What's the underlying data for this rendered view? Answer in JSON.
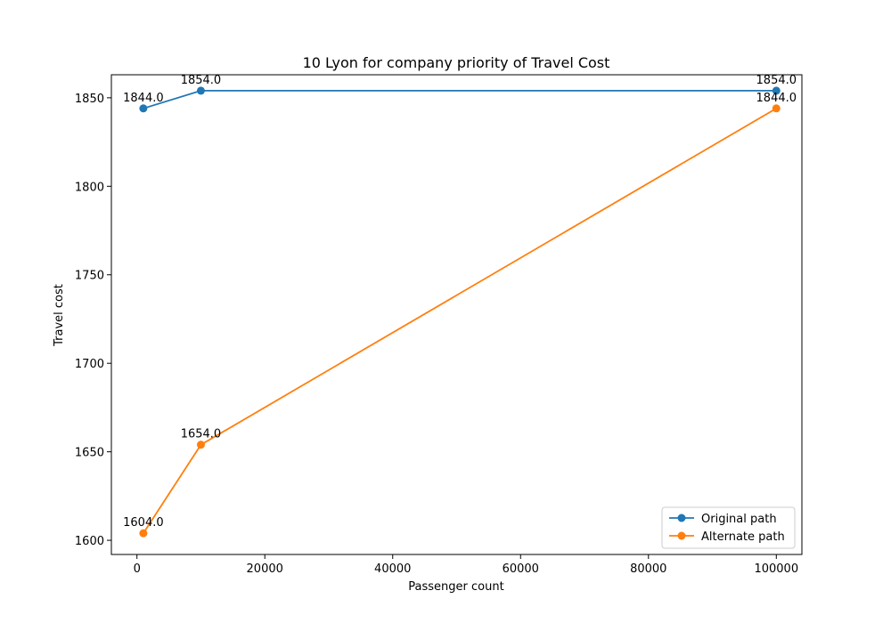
{
  "chart_data": {
    "type": "line",
    "title": "10 Lyon for company priority of Travel Cost",
    "xlabel": "Passenger count",
    "ylabel": "Travel cost",
    "xlim": [
      -4000,
      104000
    ],
    "ylim": [
      1592,
      1863
    ],
    "x_ticks": [
      0,
      20000,
      40000,
      60000,
      80000,
      100000
    ],
    "y_ticks": [
      1600,
      1650,
      1700,
      1750,
      1800,
      1850
    ],
    "grid": false,
    "legend_position": "lower-right",
    "series": [
      {
        "name": "Original path",
        "color": "#1f77b4",
        "x": [
          1000,
          10000,
          100000
        ],
        "y": [
          1844.0,
          1854.0,
          1854.0
        ],
        "labels": [
          "1844.0",
          "1854.0",
          "1854.0"
        ]
      },
      {
        "name": "Alternate path",
        "color": "#ff7f0e",
        "x": [
          1000,
          10000,
          100000
        ],
        "y": [
          1604.0,
          1654.0,
          1844.0
        ],
        "labels": [
          "1604.0",
          "1654.0",
          "1844.0"
        ]
      }
    ]
  }
}
